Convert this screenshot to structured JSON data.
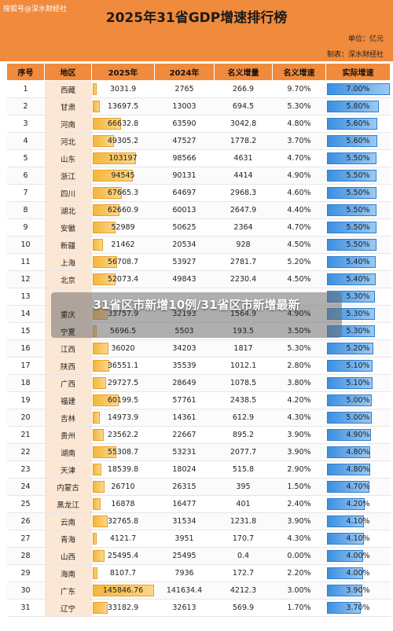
{
  "watermark_top": "搜狐号@深水财经社",
  "title": "2025年31省GDP增速排行榜",
  "unit": "单位：亿元",
  "maker": "制表：深水财经社",
  "overlay": "31省区市新增10例/31省区市新增最新",
  "headers": [
    "序号",
    "地区",
    "2025年",
    "2024年",
    "名义增量",
    "名义增速",
    "实际增速"
  ],
  "rows": [
    {
      "no": "1",
      "region": "西藏",
      "y2025": "3031.9",
      "y2024": "2765",
      "inc": "266.9",
      "nominal": "9.70%",
      "real": "7.00%",
      "v2025": 3031.9,
      "vreal": 7.0
    },
    {
      "no": "2",
      "region": "甘肃",
      "y2025": "13697.5",
      "y2024": "13003",
      "inc": "694.5",
      "nominal": "5.30%",
      "real": "5.80%",
      "v2025": 13697.5,
      "vreal": 5.8
    },
    {
      "no": "3",
      "region": "河南",
      "y2025": "66632.8",
      "y2024": "63590",
      "inc": "3042.8",
      "nominal": "4.80%",
      "real": "5.60%",
      "v2025": 66632.8,
      "vreal": 5.6
    },
    {
      "no": "4",
      "region": "河北",
      "y2025": "49305.2",
      "y2024": "47527",
      "inc": "1778.2",
      "nominal": "3.70%",
      "real": "5.60%",
      "v2025": 49305.2,
      "vreal": 5.6
    },
    {
      "no": "5",
      "region": "山东",
      "y2025": "103197",
      "y2024": "98566",
      "inc": "4631",
      "nominal": "4.70%",
      "real": "5.50%",
      "v2025": 103197,
      "vreal": 5.5
    },
    {
      "no": "6",
      "region": "浙江",
      "y2025": "94545",
      "y2024": "90131",
      "inc": "4414",
      "nominal": "4.90%",
      "real": "5.50%",
      "v2025": 94545,
      "vreal": 5.5
    },
    {
      "no": "7",
      "region": "四川",
      "y2025": "67665.3",
      "y2024": "64697",
      "inc": "2968.3",
      "nominal": "4.60%",
      "real": "5.50%",
      "v2025": 67665.3,
      "vreal": 5.5
    },
    {
      "no": "8",
      "region": "湖北",
      "y2025": "62660.9",
      "y2024": "60013",
      "inc": "2647.9",
      "nominal": "4.40%",
      "real": "5.50%",
      "v2025": 62660.9,
      "vreal": 5.5
    },
    {
      "no": "9",
      "region": "安徽",
      "y2025": "52989",
      "y2024": "50625",
      "inc": "2364",
      "nominal": "4.70%",
      "real": "5.50%",
      "v2025": 52989,
      "vreal": 5.5
    },
    {
      "no": "10",
      "region": "新疆",
      "y2025": "21462",
      "y2024": "20534",
      "inc": "928",
      "nominal": "4.50%",
      "real": "5.50%",
      "v2025": 21462,
      "vreal": 5.5
    },
    {
      "no": "11",
      "region": "上海",
      "y2025": "56708.7",
      "y2024": "53927",
      "inc": "2781.7",
      "nominal": "5.20%",
      "real": "5.40%",
      "v2025": 56708.7,
      "vreal": 5.4
    },
    {
      "no": "12",
      "region": "北京",
      "y2025": "52073.4",
      "y2024": "49843",
      "inc": "2230.4",
      "nominal": "4.50%",
      "real": "5.40%",
      "v2025": 52073.4,
      "vreal": 5.4
    },
    {
      "no": "13",
      "region": "",
      "y2025": "",
      "y2024": "",
      "inc": "",
      "nominal": "",
      "real": "5.30%",
      "v2025": 0,
      "vreal": 5.3
    },
    {
      "no": "14",
      "region": "重庆",
      "y2025": "33757.9",
      "y2024": "32193",
      "inc": "1564.9",
      "nominal": "4.90%",
      "real": "5.30%",
      "v2025": 33757.9,
      "vreal": 5.3
    },
    {
      "no": "15",
      "region": "宁夏",
      "y2025": "5696.5",
      "y2024": "5503",
      "inc": "193.5",
      "nominal": "3.50%",
      "real": "5.30%",
      "v2025": 5696.5,
      "vreal": 5.3
    },
    {
      "no": "16",
      "region": "江西",
      "y2025": "36020",
      "y2024": "34203",
      "inc": "1817",
      "nominal": "5.30%",
      "real": "5.20%",
      "v2025": 36020,
      "vreal": 5.2
    },
    {
      "no": "17",
      "region": "陕西",
      "y2025": "36551.1",
      "y2024": "35539",
      "inc": "1012.1",
      "nominal": "2.80%",
      "real": "5.10%",
      "v2025": 36551.1,
      "vreal": 5.1
    },
    {
      "no": "18",
      "region": "广西",
      "y2025": "29727.5",
      "y2024": "28649",
      "inc": "1078.5",
      "nominal": "3.80%",
      "real": "5.10%",
      "v2025": 29727.5,
      "vreal": 5.1
    },
    {
      "no": "19",
      "region": "福建",
      "y2025": "60199.5",
      "y2024": "57761",
      "inc": "2438.5",
      "nominal": "4.20%",
      "real": "5.00%",
      "v2025": 60199.5,
      "vreal": 5.0
    },
    {
      "no": "20",
      "region": "吉林",
      "y2025": "14973.9",
      "y2024": "14361",
      "inc": "612.9",
      "nominal": "4.30%",
      "real": "5.00%",
      "v2025": 14973.9,
      "vreal": 5.0
    },
    {
      "no": "21",
      "region": "贵州",
      "y2025": "23562.2",
      "y2024": "22667",
      "inc": "895.2",
      "nominal": "3.90%",
      "real": "4.90%",
      "v2025": 23562.2,
      "vreal": 4.9
    },
    {
      "no": "22",
      "region": "湖南",
      "y2025": "55308.7",
      "y2024": "53231",
      "inc": "2077.7",
      "nominal": "3.90%",
      "real": "4.80%",
      "v2025": 55308.7,
      "vreal": 4.8
    },
    {
      "no": "23",
      "region": "天津",
      "y2025": "18539.8",
      "y2024": "18024",
      "inc": "515.8",
      "nominal": "2.90%",
      "real": "4.80%",
      "v2025": 18539.8,
      "vreal": 4.8
    },
    {
      "no": "24",
      "region": "内蒙古",
      "y2025": "26710",
      "y2024": "26315",
      "inc": "395",
      "nominal": "1.50%",
      "real": "4.70%",
      "v2025": 26710,
      "vreal": 4.7
    },
    {
      "no": "25",
      "region": "黑龙江",
      "y2025": "16878",
      "y2024": "16477",
      "inc": "401",
      "nominal": "2.40%",
      "real": "4.20%",
      "v2025": 16878,
      "vreal": 4.2
    },
    {
      "no": "26",
      "region": "云南",
      "y2025": "32765.8",
      "y2024": "31534",
      "inc": "1231.8",
      "nominal": "3.90%",
      "real": "4.10%",
      "v2025": 32765.8,
      "vreal": 4.1
    },
    {
      "no": "27",
      "region": "青海",
      "y2025": "4121.7",
      "y2024": "3951",
      "inc": "170.7",
      "nominal": "4.30%",
      "real": "4.10%",
      "v2025": 4121.7,
      "vreal": 4.1
    },
    {
      "no": "28",
      "region": "山西",
      "y2025": "25495.4",
      "y2024": "25495",
      "inc": "0.4",
      "nominal": "0.00%",
      "real": "4.00%",
      "v2025": 25495.4,
      "vreal": 4.0
    },
    {
      "no": "29",
      "region": "海南",
      "y2025": "8107.7",
      "y2024": "7936",
      "inc": "172.7",
      "nominal": "2.20%",
      "real": "4.00%",
      "v2025": 8107.7,
      "vreal": 4.0
    },
    {
      "no": "30",
      "region": "广东",
      "y2025": "145846.76",
      "y2024": "141634.4",
      "inc": "4212.3",
      "nominal": "3.00%",
      "real": "3.90%",
      "v2025": 145846.76,
      "vreal": 3.9
    },
    {
      "no": "31",
      "region": "辽宁",
      "y2025": "33182.9",
      "y2024": "32613",
      "inc": "569.9",
      "nominal": "1.70%",
      "real": "3.70%",
      "v2025": 33182.9,
      "vreal": 3.7
    }
  ],
  "colors": {
    "header": "#f08a3c",
    "bar_orange": "#f5b63a",
    "bar_blue": "#3b8fe0"
  }
}
